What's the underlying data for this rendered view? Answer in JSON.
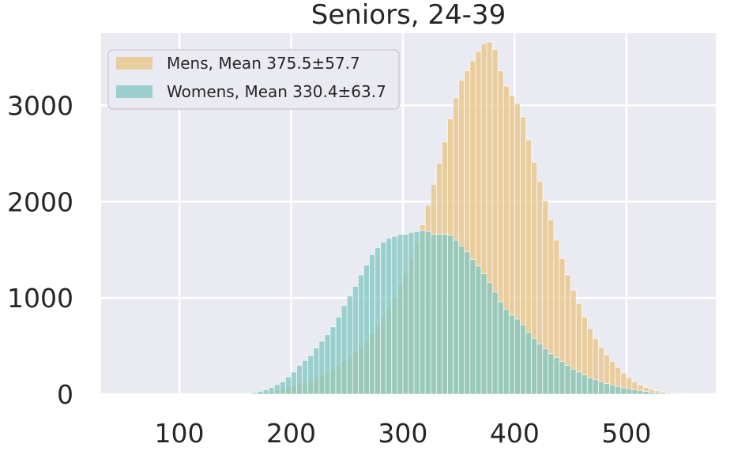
{
  "chart_data": {
    "type": "bar",
    "title": "Seniors, 24-39",
    "xlabel": "",
    "ylabel": "",
    "xlim": [
      30,
      580
    ],
    "ylim": [
      0,
      3750
    ],
    "xticks": [
      100,
      200,
      300,
      400,
      500
    ],
    "yticks": [
      0,
      1000,
      2000,
      3000
    ],
    "grid": true,
    "legend_position": "top-left",
    "bin_width": 5,
    "bin_starts": [
      50,
      55,
      60,
      65,
      70,
      75,
      80,
      85,
      90,
      95,
      100,
      105,
      110,
      115,
      120,
      125,
      130,
      135,
      140,
      145,
      150,
      155,
      160,
      165,
      170,
      175,
      180,
      185,
      190,
      195,
      200,
      205,
      210,
      215,
      220,
      225,
      230,
      235,
      240,
      245,
      250,
      255,
      260,
      265,
      270,
      275,
      280,
      285,
      290,
      295,
      300,
      305,
      310,
      315,
      320,
      325,
      330,
      335,
      340,
      345,
      350,
      355,
      360,
      365,
      370,
      375,
      380,
      385,
      390,
      395,
      400,
      405,
      410,
      415,
      420,
      425,
      430,
      435,
      440,
      445,
      450,
      455,
      460,
      465,
      470,
      475,
      480,
      485,
      490,
      495,
      500,
      505,
      510,
      515,
      520,
      525,
      530,
      535,
      540,
      545,
      550
    ],
    "series": [
      {
        "name": "Mens, Mean 375.5±57.7",
        "color": "#e8c382",
        "values": [
          0,
          0,
          0,
          0,
          0,
          0,
          0,
          0,
          0,
          0,
          0,
          0,
          0,
          0,
          0,
          0,
          0,
          0,
          0,
          0,
          0,
          0,
          2,
          5,
          10,
          18,
          28,
          40,
          55,
          72,
          90,
          110,
          130,
          150,
          175,
          200,
          230,
          265,
          300,
          345,
          390,
          440,
          500,
          560,
          630,
          710,
          800,
          900,
          1010,
          1130,
          1260,
          1410,
          1580,
          1760,
          1960,
          2180,
          2400,
          2620,
          2860,
          3080,
          3260,
          3360,
          3460,
          3560,
          3640,
          3660,
          3580,
          3360,
          3200,
          3100,
          3020,
          2880,
          2640,
          2410,
          2210,
          2010,
          1810,
          1600,
          1410,
          1240,
          1080,
          940,
          800,
          680,
          580,
          490,
          410,
          340,
          280,
          220,
          170,
          130,
          95,
          70,
          50,
          35,
          25,
          18,
          12,
          8,
          5
        ]
      },
      {
        "name": "Womens, Mean 330.4±63.7",
        "color": "#7fc6c1",
        "values": [
          0,
          0,
          0,
          0,
          0,
          0,
          0,
          0,
          0,
          0,
          0,
          0,
          0,
          0,
          0,
          0,
          0,
          0,
          0,
          0,
          0,
          0,
          5,
          15,
          30,
          45,
          70,
          100,
          130,
          180,
          230,
          300,
          350,
          400,
          480,
          550,
          620,
          700,
          800,
          920,
          1020,
          1120,
          1240,
          1340,
          1450,
          1520,
          1580,
          1620,
          1640,
          1660,
          1660,
          1680,
          1690,
          1700,
          1690,
          1660,
          1660,
          1660,
          1650,
          1600,
          1540,
          1480,
          1400,
          1330,
          1250,
          1160,
          1060,
          960,
          880,
          820,
          780,
          720,
          640,
          580,
          520,
          470,
          420,
          380,
          340,
          300,
          260,
          230,
          200,
          170,
          150,
          130,
          110,
          95,
          80,
          65,
          55,
          45,
          36,
          28,
          22,
          16,
          12,
          8,
          5,
          3,
          2
        ]
      }
    ]
  }
}
